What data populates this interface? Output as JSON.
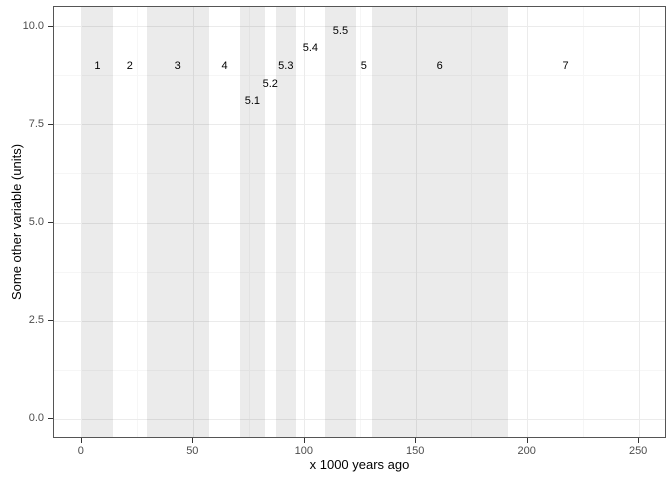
{
  "chart_data": {
    "type": "scatter",
    "title": "",
    "xlabel": "x 1000 years ago",
    "ylabel": "Some other variable (units)",
    "xlim": [
      -12.5,
      262.5
    ],
    "ylim": [
      -0.5,
      10.5
    ],
    "grid": "on",
    "legend": "none",
    "x_major_ticks": [
      0,
      50,
      100,
      150,
      200,
      250
    ],
    "x_tick_labels": [
      "0",
      "50",
      "100",
      "150",
      "200",
      "250"
    ],
    "x_minor_ticks": [
      25,
      75,
      125,
      175,
      225
    ],
    "y_major_ticks": [
      0,
      2.5,
      5,
      7.5,
      10
    ],
    "y_tick_labels": [
      "0.0",
      "2.5",
      "5.0",
      "7.5",
      "10.0"
    ],
    "y_minor_ticks": [
      1.25,
      3.75,
      6.25,
      8.75
    ],
    "series": [],
    "stages": [
      {
        "label": "1",
        "x_start": 0,
        "x_end": 14,
        "shaded": true,
        "label_x": 7,
        "label_y": 9.0
      },
      {
        "label": "2",
        "x_start": 14,
        "x_end": 29,
        "shaded": false,
        "label_x": 21.5,
        "label_y": 9.0
      },
      {
        "label": "3",
        "x_start": 29,
        "x_end": 57,
        "shaded": true,
        "label_x": 43,
        "label_y": 9.0
      },
      {
        "label": "4",
        "x_start": 57,
        "x_end": 71,
        "shaded": false,
        "label_x": 64,
        "label_y": 9.0
      },
      {
        "label": "5.1",
        "x_start": 71,
        "x_end": 82,
        "shaded": true,
        "label_x": 76.5,
        "label_y": 8.1
      },
      {
        "label": "5.2",
        "x_start": 82,
        "x_end": 87,
        "shaded": false,
        "label_x": 84.5,
        "label_y": 8.55
      },
      {
        "label": "5.3",
        "x_start": 87,
        "x_end": 96,
        "shaded": true,
        "label_x": 91.5,
        "label_y": 9.0
      },
      {
        "label": "5.4",
        "x_start": 96,
        "x_end": 109,
        "shaded": false,
        "label_x": 102.5,
        "label_y": 9.45
      },
      {
        "label": "5.5",
        "x_start": 109,
        "x_end": 123,
        "shaded": true,
        "label_x": 116,
        "label_y": 9.9
      },
      {
        "label": "5",
        "x_start": 123,
        "x_end": 130,
        "shaded": false,
        "label_x": 126.5,
        "label_y": 9.0
      },
      {
        "label": "6",
        "x_start": 130,
        "x_end": 191,
        "shaded": true,
        "label_x": 160.5,
        "label_y": 9.0
      },
      {
        "label": "7",
        "x_start": 191,
        "x_end": 243,
        "shaded": false,
        "label_x": 217,
        "label_y": 9.0
      }
    ],
    "colors": {
      "band_fill": "#ebebeb",
      "panel_background": "#ffffff",
      "panel_border": "#555555",
      "grid_major": "#ebebeb",
      "grid_minor": "#f6f6f6",
      "tick_label": "#4d4d4d",
      "stage_label": "#000000",
      "axis_title": "#000000"
    }
  }
}
